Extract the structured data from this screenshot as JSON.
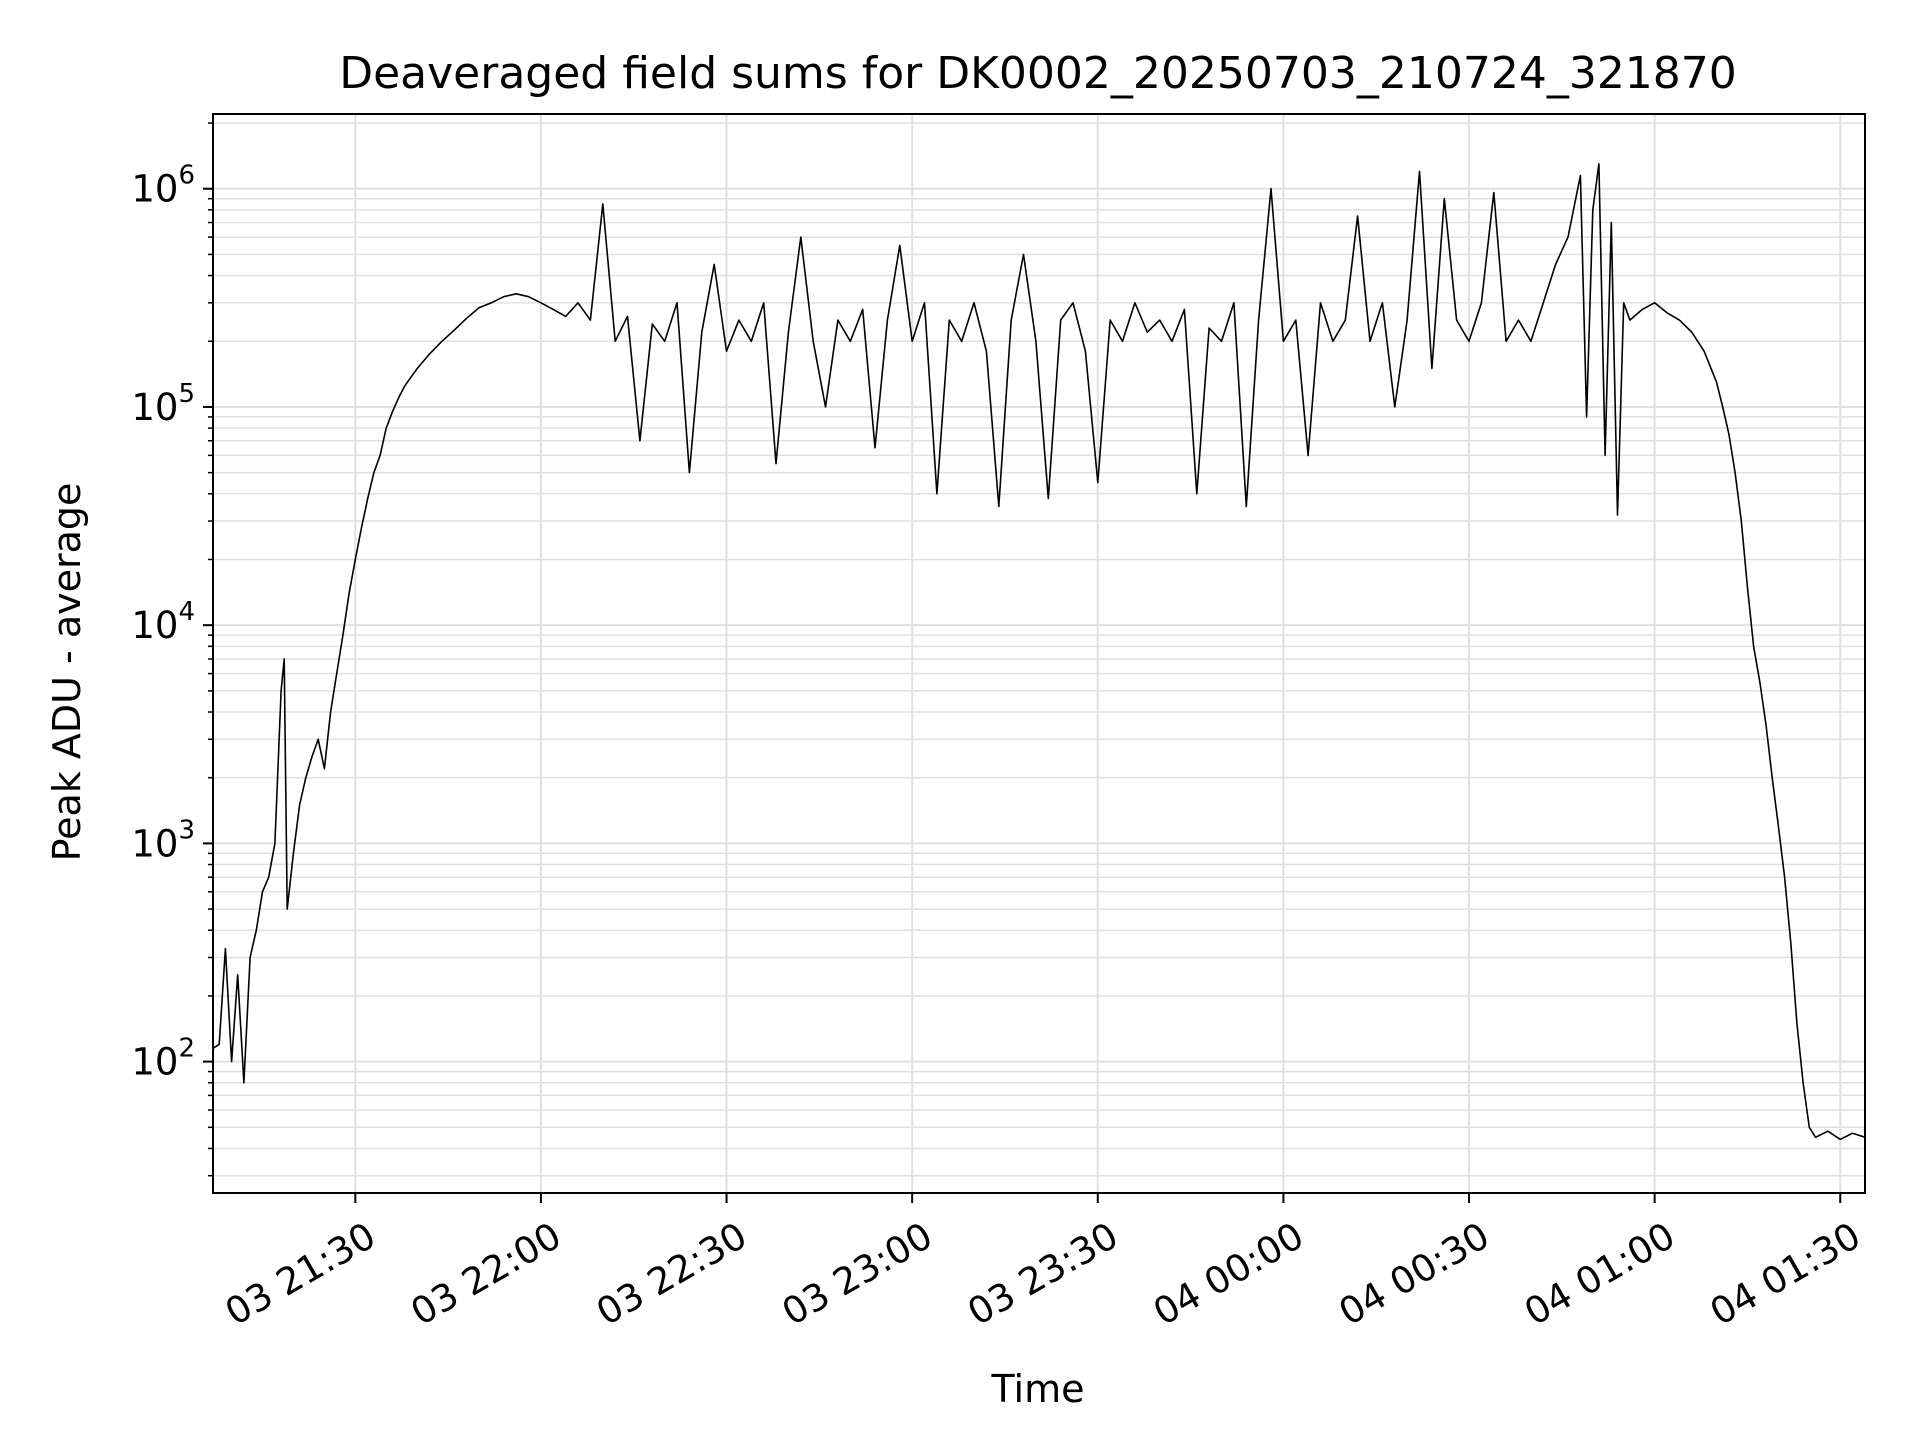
{
  "chart_data": {
    "type": "line",
    "title": "Deaveraged field sums for DK0002_20250703_210724_321870",
    "xlabel": "Time",
    "ylabel": "Peak ADU - average",
    "yscale": "log",
    "ylim": [
      25,
      2200000
    ],
    "xlim": [
      "2025-07-03 21:07:00",
      "2025-07-04 01:34:00"
    ],
    "x_tick_labels": [
      "03 21:30",
      "03 22:00",
      "03 22:30",
      "03 23:00",
      "03 23:30",
      "04 00:00",
      "04 00:30",
      "04 01:00",
      "04 01:30"
    ],
    "x_tick_times": [
      "2025-07-03 21:30",
      "2025-07-03 22:00",
      "2025-07-03 22:30",
      "2025-07-03 23:00",
      "2025-07-03 23:30",
      "2025-07-04 00:00",
      "2025-07-04 00:30",
      "2025-07-04 01:00",
      "2025-07-04 01:30"
    ],
    "y_tick_labels": [
      {
        "base": "10",
        "exp": "2",
        "value": 100
      },
      {
        "base": "10",
        "exp": "3",
        "value": 1000
      },
      {
        "base": "10",
        "exp": "4",
        "value": 10000
      },
      {
        "base": "10",
        "exp": "5",
        "value": 100000
      },
      {
        "base": "10",
        "exp": "6",
        "value": 1000000
      }
    ],
    "grid": true,
    "line_color": "#000000",
    "grid_color": "#e0e0e0",
    "series": [
      {
        "points": [
          [
            "2025-07-03 21:07",
            115
          ],
          [
            "2025-07-03 21:08",
            120
          ],
          [
            "2025-07-03 21:09",
            330
          ],
          [
            "2025-07-03 21:10",
            100
          ],
          [
            "2025-07-03 21:11",
            250
          ],
          [
            "2025-07-03 21:12",
            80
          ],
          [
            "2025-07-03 21:13",
            300
          ],
          [
            "2025-07-03 21:14",
            400
          ],
          [
            "2025-07-03 21:15",
            600
          ],
          [
            "2025-07-03 21:16",
            700
          ],
          [
            "2025-07-03 21:17",
            1000
          ],
          [
            "2025-07-03 21:18",
            5000
          ],
          [
            "2025-07-03 21:18:30",
            7000
          ],
          [
            "2025-07-03 21:19",
            500
          ],
          [
            "2025-07-03 21:20",
            900
          ],
          [
            "2025-07-03 21:21",
            1500
          ],
          [
            "2025-07-03 21:22",
            2000
          ],
          [
            "2025-07-03 21:23",
            2500
          ],
          [
            "2025-07-03 21:24",
            3000
          ],
          [
            "2025-07-03 21:25",
            2200
          ],
          [
            "2025-07-03 21:26",
            4000
          ],
          [
            "2025-07-03 21:27",
            6000
          ],
          [
            "2025-07-03 21:28",
            9000
          ],
          [
            "2025-07-03 21:29",
            14000
          ],
          [
            "2025-07-03 21:30",
            20000
          ],
          [
            "2025-07-03 21:31",
            28000
          ],
          [
            "2025-07-03 21:32",
            38000
          ],
          [
            "2025-07-03 21:33",
            50000
          ],
          [
            "2025-07-03 21:34",
            60000
          ],
          [
            "2025-07-03 21:35",
            80000
          ],
          [
            "2025-07-03 21:36",
            95000
          ],
          [
            "2025-07-03 21:37",
            110000
          ],
          [
            "2025-07-03 21:38",
            125000
          ],
          [
            "2025-07-03 21:40",
            150000
          ],
          [
            "2025-07-03 21:42",
            175000
          ],
          [
            "2025-07-03 21:44",
            200000
          ],
          [
            "2025-07-03 21:46",
            225000
          ],
          [
            "2025-07-03 21:48",
            255000
          ],
          [
            "2025-07-03 21:50",
            285000
          ],
          [
            "2025-07-03 21:52",
            300000
          ],
          [
            "2025-07-03 21:54",
            320000
          ],
          [
            "2025-07-03 21:56",
            330000
          ],
          [
            "2025-07-03 21:58",
            320000
          ],
          [
            "2025-07-03 22:00",
            300000
          ],
          [
            "2025-07-03 22:02",
            280000
          ],
          [
            "2025-07-03 22:04",
            260000
          ],
          [
            "2025-07-03 22:06",
            300000
          ],
          [
            "2025-07-03 22:08",
            250000
          ],
          [
            "2025-07-03 22:10",
            850000
          ],
          [
            "2025-07-03 22:12",
            200000
          ],
          [
            "2025-07-03 22:14",
            260000
          ],
          [
            "2025-07-03 22:16",
            70000
          ],
          [
            "2025-07-03 22:18",
            240000
          ],
          [
            "2025-07-03 22:20",
            200000
          ],
          [
            "2025-07-03 22:22",
            300000
          ],
          [
            "2025-07-03 22:24",
            50000
          ],
          [
            "2025-07-03 22:26",
            220000
          ],
          [
            "2025-07-03 22:28",
            450000
          ],
          [
            "2025-07-03 22:30",
            180000
          ],
          [
            "2025-07-03 22:32",
            250000
          ],
          [
            "2025-07-03 22:34",
            200000
          ],
          [
            "2025-07-03 22:36",
            300000
          ],
          [
            "2025-07-03 22:38",
            55000
          ],
          [
            "2025-07-03 22:40",
            220000
          ],
          [
            "2025-07-03 22:42",
            600000
          ],
          [
            "2025-07-03 22:44",
            200000
          ],
          [
            "2025-07-03 22:46",
            100000
          ],
          [
            "2025-07-03 22:48",
            250000
          ],
          [
            "2025-07-03 22:50",
            200000
          ],
          [
            "2025-07-03 22:52",
            280000
          ],
          [
            "2025-07-03 22:54",
            65000
          ],
          [
            "2025-07-03 22:56",
            250000
          ],
          [
            "2025-07-03 22:58",
            550000
          ],
          [
            "2025-07-03 23:00",
            200000
          ],
          [
            "2025-07-03 23:02",
            300000
          ],
          [
            "2025-07-03 23:04",
            40000
          ],
          [
            "2025-07-03 23:06",
            250000
          ],
          [
            "2025-07-03 23:08",
            200000
          ],
          [
            "2025-07-03 23:10",
            300000
          ],
          [
            "2025-07-03 23:12",
            180000
          ],
          [
            "2025-07-03 23:14",
            35000
          ],
          [
            "2025-07-03 23:16",
            250000
          ],
          [
            "2025-07-03 23:18",
            500000
          ],
          [
            "2025-07-03 23:20",
            200000
          ],
          [
            "2025-07-03 23:22",
            38000
          ],
          [
            "2025-07-03 23:24",
            250000
          ],
          [
            "2025-07-03 23:26",
            300000
          ],
          [
            "2025-07-03 23:28",
            180000
          ],
          [
            "2025-07-03 23:30",
            45000
          ],
          [
            "2025-07-03 23:32",
            250000
          ],
          [
            "2025-07-03 23:34",
            200000
          ],
          [
            "2025-07-03 23:36",
            300000
          ],
          [
            "2025-07-03 23:38",
            220000
          ],
          [
            "2025-07-03 23:40",
            250000
          ],
          [
            "2025-07-03 23:42",
            200000
          ],
          [
            "2025-07-03 23:44",
            280000
          ],
          [
            "2025-07-03 23:46",
            40000
          ],
          [
            "2025-07-03 23:48",
            230000
          ],
          [
            "2025-07-03 23:50",
            200000
          ],
          [
            "2025-07-03 23:52",
            300000
          ],
          [
            "2025-07-03 23:54",
            35000
          ],
          [
            "2025-07-03 23:56",
            250000
          ],
          [
            "2025-07-03 23:58",
            1000000
          ],
          [
            "2025-07-04 00:00",
            200000
          ],
          [
            "2025-07-04 00:02",
            250000
          ],
          [
            "2025-07-04 00:04",
            60000
          ],
          [
            "2025-07-04 00:06",
            300000
          ],
          [
            "2025-07-04 00:08",
            200000
          ],
          [
            "2025-07-04 00:10",
            250000
          ],
          [
            "2025-07-04 00:12",
            750000
          ],
          [
            "2025-07-04 00:14",
            200000
          ],
          [
            "2025-07-04 00:16",
            300000
          ],
          [
            "2025-07-04 00:18",
            100000
          ],
          [
            "2025-07-04 00:20",
            250000
          ],
          [
            "2025-07-04 00:22",
            1200000
          ],
          [
            "2025-07-04 00:24",
            150000
          ],
          [
            "2025-07-04 00:26",
            900000
          ],
          [
            "2025-07-04 00:28",
            250000
          ],
          [
            "2025-07-04 00:30",
            200000
          ],
          [
            "2025-07-04 00:32",
            300000
          ],
          [
            "2025-07-04 00:34",
            960000
          ],
          [
            "2025-07-04 00:36",
            200000
          ],
          [
            "2025-07-04 00:38",
            250000
          ],
          [
            "2025-07-04 00:40",
            200000
          ],
          [
            "2025-07-04 00:42",
            300000
          ],
          [
            "2025-07-04 00:44",
            450000
          ],
          [
            "2025-07-04 00:46",
            600000
          ],
          [
            "2025-07-04 00:48",
            1150000
          ],
          [
            "2025-07-04 00:49",
            90000
          ],
          [
            "2025-07-04 00:50",
            800000
          ],
          [
            "2025-07-04 00:51",
            1300000
          ],
          [
            "2025-07-04 00:52",
            60000
          ],
          [
            "2025-07-04 00:53",
            700000
          ],
          [
            "2025-07-04 00:54",
            32000
          ],
          [
            "2025-07-04 00:55",
            300000
          ],
          [
            "2025-07-04 00:56",
            250000
          ],
          [
            "2025-07-04 00:58",
            280000
          ],
          [
            "2025-07-04 01:00",
            300000
          ],
          [
            "2025-07-04 01:02",
            270000
          ],
          [
            "2025-07-04 01:04",
            250000
          ],
          [
            "2025-07-04 01:06",
            220000
          ],
          [
            "2025-07-04 01:08",
            180000
          ],
          [
            "2025-07-04 01:10",
            130000
          ],
          [
            "2025-07-04 01:11",
            100000
          ],
          [
            "2025-07-04 01:12",
            75000
          ],
          [
            "2025-07-04 01:13",
            50000
          ],
          [
            "2025-07-04 01:14",
            30000
          ],
          [
            "2025-07-04 01:15",
            15000
          ],
          [
            "2025-07-04 01:16",
            8000
          ],
          [
            "2025-07-04 01:17",
            5500
          ],
          [
            "2025-07-04 01:18",
            3500
          ],
          [
            "2025-07-04 01:19",
            2000
          ],
          [
            "2025-07-04 01:20",
            1200
          ],
          [
            "2025-07-04 01:21",
            700
          ],
          [
            "2025-07-04 01:22",
            350
          ],
          [
            "2025-07-04 01:23",
            150
          ],
          [
            "2025-07-04 01:24",
            80
          ],
          [
            "2025-07-04 01:25",
            50
          ],
          [
            "2025-07-04 01:26",
            45
          ],
          [
            "2025-07-04 01:28",
            48
          ],
          [
            "2025-07-04 01:30",
            44
          ],
          [
            "2025-07-04 01:32",
            47
          ],
          [
            "2025-07-04 01:34",
            45
          ]
        ]
      }
    ]
  }
}
